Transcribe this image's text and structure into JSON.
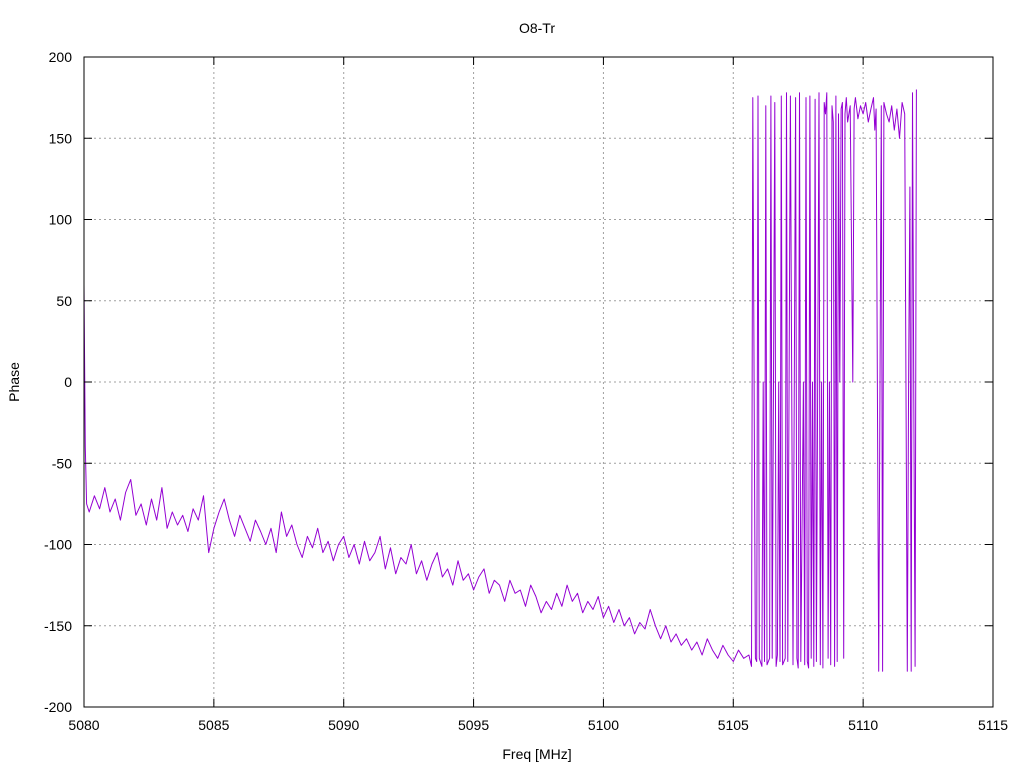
{
  "chart_data": {
    "type": "line",
    "title": "O8-Tr",
    "xlabel": "Freq [MHz]",
    "ylabel": "Phase",
    "xlim": [
      5080,
      5115
    ],
    "ylim": [
      -200,
      200
    ],
    "xticks": [
      5080,
      5085,
      5090,
      5095,
      5100,
      5105,
      5110,
      5115
    ],
    "yticks": [
      -200,
      -150,
      -100,
      -50,
      0,
      50,
      100,
      150,
      200
    ],
    "grid": true,
    "series": [
      {
        "color": "#9400d3",
        "points": [
          [
            5080.0,
            60
          ],
          [
            5080.02,
            20
          ],
          [
            5080.05,
            -40
          ],
          [
            5080.1,
            -75
          ],
          [
            5080.2,
            -80
          ],
          [
            5080.4,
            -70
          ],
          [
            5080.6,
            -78
          ],
          [
            5080.8,
            -65
          ],
          [
            5081.0,
            -80
          ],
          [
            5081.2,
            -72
          ],
          [
            5081.4,
            -85
          ],
          [
            5081.6,
            -68
          ],
          [
            5081.8,
            -60
          ],
          [
            5082.0,
            -82
          ],
          [
            5082.2,
            -75
          ],
          [
            5082.4,
            -88
          ],
          [
            5082.6,
            -72
          ],
          [
            5082.8,
            -85
          ],
          [
            5083.0,
            -65
          ],
          [
            5083.2,
            -90
          ],
          [
            5083.4,
            -80
          ],
          [
            5083.6,
            -88
          ],
          [
            5083.8,
            -82
          ],
          [
            5084.0,
            -92
          ],
          [
            5084.2,
            -78
          ],
          [
            5084.4,
            -85
          ],
          [
            5084.6,
            -70
          ],
          [
            5084.8,
            -105
          ],
          [
            5085.0,
            -90
          ],
          [
            5085.2,
            -80
          ],
          [
            5085.4,
            -72
          ],
          [
            5085.6,
            -85
          ],
          [
            5085.8,
            -95
          ],
          [
            5086.0,
            -82
          ],
          [
            5086.2,
            -90
          ],
          [
            5086.4,
            -98
          ],
          [
            5086.6,
            -85
          ],
          [
            5086.8,
            -92
          ],
          [
            5087.0,
            -100
          ],
          [
            5087.2,
            -90
          ],
          [
            5087.4,
            -105
          ],
          [
            5087.6,
            -80
          ],
          [
            5087.8,
            -95
          ],
          [
            5088.0,
            -88
          ],
          [
            5088.2,
            -100
          ],
          [
            5088.4,
            -108
          ],
          [
            5088.6,
            -95
          ],
          [
            5088.8,
            -102
          ],
          [
            5089.0,
            -90
          ],
          [
            5089.2,
            -105
          ],
          [
            5089.4,
            -98
          ],
          [
            5089.6,
            -110
          ],
          [
            5089.8,
            -100
          ],
          [
            5090.0,
            -95
          ],
          [
            5090.2,
            -108
          ],
          [
            5090.4,
            -100
          ],
          [
            5090.6,
            -112
          ],
          [
            5090.8,
            -98
          ],
          [
            5091.0,
            -110
          ],
          [
            5091.2,
            -105
          ],
          [
            5091.4,
            -95
          ],
          [
            5091.6,
            -115
          ],
          [
            5091.8,
            -102
          ],
          [
            5092.0,
            -118
          ],
          [
            5092.2,
            -108
          ],
          [
            5092.4,
            -112
          ],
          [
            5092.6,
            -100
          ],
          [
            5092.8,
            -118
          ],
          [
            5093.0,
            -110
          ],
          [
            5093.2,
            -122
          ],
          [
            5093.4,
            -112
          ],
          [
            5093.6,
            -105
          ],
          [
            5093.8,
            -120
          ],
          [
            5094.0,
            -115
          ],
          [
            5094.2,
            -125
          ],
          [
            5094.4,
            -110
          ],
          [
            5094.6,
            -122
          ],
          [
            5094.8,
            -118
          ],
          [
            5095.0,
            -128
          ],
          [
            5095.2,
            -120
          ],
          [
            5095.4,
            -115
          ],
          [
            5095.6,
            -130
          ],
          [
            5095.8,
            -122
          ],
          [
            5096.0,
            -125
          ],
          [
            5096.2,
            -135
          ],
          [
            5096.4,
            -122
          ],
          [
            5096.6,
            -130
          ],
          [
            5096.8,
            -128
          ],
          [
            5097.0,
            -138
          ],
          [
            5097.2,
            -125
          ],
          [
            5097.4,
            -132
          ],
          [
            5097.6,
            -142
          ],
          [
            5097.8,
            -135
          ],
          [
            5098.0,
            -140
          ],
          [
            5098.2,
            -130
          ],
          [
            5098.4,
            -138
          ],
          [
            5098.6,
            -125
          ],
          [
            5098.8,
            -135
          ],
          [
            5099.0,
            -130
          ],
          [
            5099.2,
            -142
          ],
          [
            5099.4,
            -135
          ],
          [
            5099.6,
            -140
          ],
          [
            5099.8,
            -132
          ],
          [
            5100.0,
            -145
          ],
          [
            5100.2,
            -138
          ],
          [
            5100.4,
            -148
          ],
          [
            5100.6,
            -140
          ],
          [
            5100.8,
            -150
          ],
          [
            5101.0,
            -145
          ],
          [
            5101.2,
            -155
          ],
          [
            5101.4,
            -148
          ],
          [
            5101.6,
            -152
          ],
          [
            5101.8,
            -140
          ],
          [
            5102.0,
            -150
          ],
          [
            5102.2,
            -158
          ],
          [
            5102.4,
            -150
          ],
          [
            5102.6,
            -160
          ],
          [
            5102.8,
            -155
          ],
          [
            5103.0,
            -162
          ],
          [
            5103.2,
            -158
          ],
          [
            5103.4,
            -165
          ],
          [
            5103.6,
            -160
          ],
          [
            5103.8,
            -168
          ],
          [
            5104.0,
            -158
          ],
          [
            5104.2,
            -165
          ],
          [
            5104.4,
            -170
          ],
          [
            5104.6,
            -162
          ],
          [
            5104.8,
            -168
          ],
          [
            5105.0,
            -172
          ],
          [
            5105.2,
            -165
          ],
          [
            5105.4,
            -170
          ],
          [
            5105.6,
            -168
          ],
          [
            5105.7,
            -175
          ],
          [
            5105.75,
            175
          ],
          [
            5105.8,
            0
          ],
          [
            5105.85,
            -170
          ],
          [
            5105.9,
            -172
          ],
          [
            5105.95,
            176
          ],
          [
            5106.0,
            -170
          ],
          [
            5106.1,
            -175
          ],
          [
            5106.15,
            0
          ],
          [
            5106.2,
            -172
          ],
          [
            5106.25,
            170
          ],
          [
            5106.3,
            -174
          ],
          [
            5106.4,
            -170
          ],
          [
            5106.45,
            176
          ],
          [
            5106.5,
            -170
          ],
          [
            5106.6,
            172
          ],
          [
            5106.65,
            -175
          ],
          [
            5106.7,
            -168
          ],
          [
            5106.75,
            0
          ],
          [
            5106.8,
            -172
          ],
          [
            5106.85,
            176
          ],
          [
            5106.9,
            -174
          ],
          [
            5107.0,
            -170
          ],
          [
            5107.05,
            178
          ],
          [
            5107.1,
            -172
          ],
          [
            5107.2,
            176
          ],
          [
            5107.25,
            0
          ],
          [
            5107.3,
            -174
          ],
          [
            5107.4,
            175
          ],
          [
            5107.45,
            -170
          ],
          [
            5107.5,
            -176
          ],
          [
            5107.55,
            178
          ],
          [
            5107.6,
            -172
          ],
          [
            5107.7,
            0
          ],
          [
            5107.75,
            -174
          ],
          [
            5107.8,
            175
          ],
          [
            5107.85,
            -172
          ],
          [
            5107.9,
            -176
          ],
          [
            5107.95,
            176
          ],
          [
            5108.0,
            -170
          ],
          [
            5108.05,
            0
          ],
          [
            5108.1,
            -175
          ],
          [
            5108.15,
            174
          ],
          [
            5108.2,
            -172
          ],
          [
            5108.3,
            178
          ],
          [
            5108.35,
            -174
          ],
          [
            5108.4,
            0
          ],
          [
            5108.45,
            -176
          ],
          [
            5108.5,
            172
          ],
          [
            5108.55,
            165
          ],
          [
            5108.6,
            178
          ],
          [
            5108.65,
            -170
          ],
          [
            5108.7,
            0
          ],
          [
            5108.75,
            -174
          ],
          [
            5108.8,
            170
          ],
          [
            5108.85,
            160
          ],
          [
            5108.9,
            -175
          ],
          [
            5108.95,
            176
          ],
          [
            5109.0,
            -172
          ],
          [
            5109.05,
            165
          ],
          [
            5109.1,
            0
          ],
          [
            5109.15,
            168
          ],
          [
            5109.2,
            172
          ],
          [
            5109.25,
            -170
          ],
          [
            5109.3,
            165
          ],
          [
            5109.35,
            175
          ],
          [
            5109.4,
            160
          ],
          [
            5109.5,
            170
          ],
          [
            5109.6,
            0
          ],
          [
            5109.65,
            168
          ],
          [
            5109.7,
            175
          ],
          [
            5109.8,
            162
          ],
          [
            5109.9,
            170
          ],
          [
            5110.0,
            165
          ],
          [
            5110.1,
            172
          ],
          [
            5110.2,
            160
          ],
          [
            5110.3,
            168
          ],
          [
            5110.4,
            175
          ],
          [
            5110.45,
            155
          ],
          [
            5110.5,
            168
          ],
          [
            5110.6,
            -178
          ],
          [
            5110.65,
            0
          ],
          [
            5110.7,
            170
          ],
          [
            5110.75,
            -178
          ],
          [
            5110.8,
            172
          ],
          [
            5110.9,
            165
          ],
          [
            5111.0,
            160
          ],
          [
            5111.1,
            170
          ],
          [
            5111.2,
            155
          ],
          [
            5111.3,
            168
          ],
          [
            5111.4,
            150
          ],
          [
            5111.5,
            172
          ],
          [
            5111.6,
            165
          ],
          [
            5111.7,
            -178
          ],
          [
            5111.75,
            0
          ],
          [
            5111.8,
            120
          ],
          [
            5111.85,
            -178
          ],
          [
            5111.9,
            178
          ],
          [
            5111.95,
            -10
          ],
          [
            5112.0,
            -175
          ],
          [
            5112.05,
            180
          ]
        ]
      }
    ]
  }
}
